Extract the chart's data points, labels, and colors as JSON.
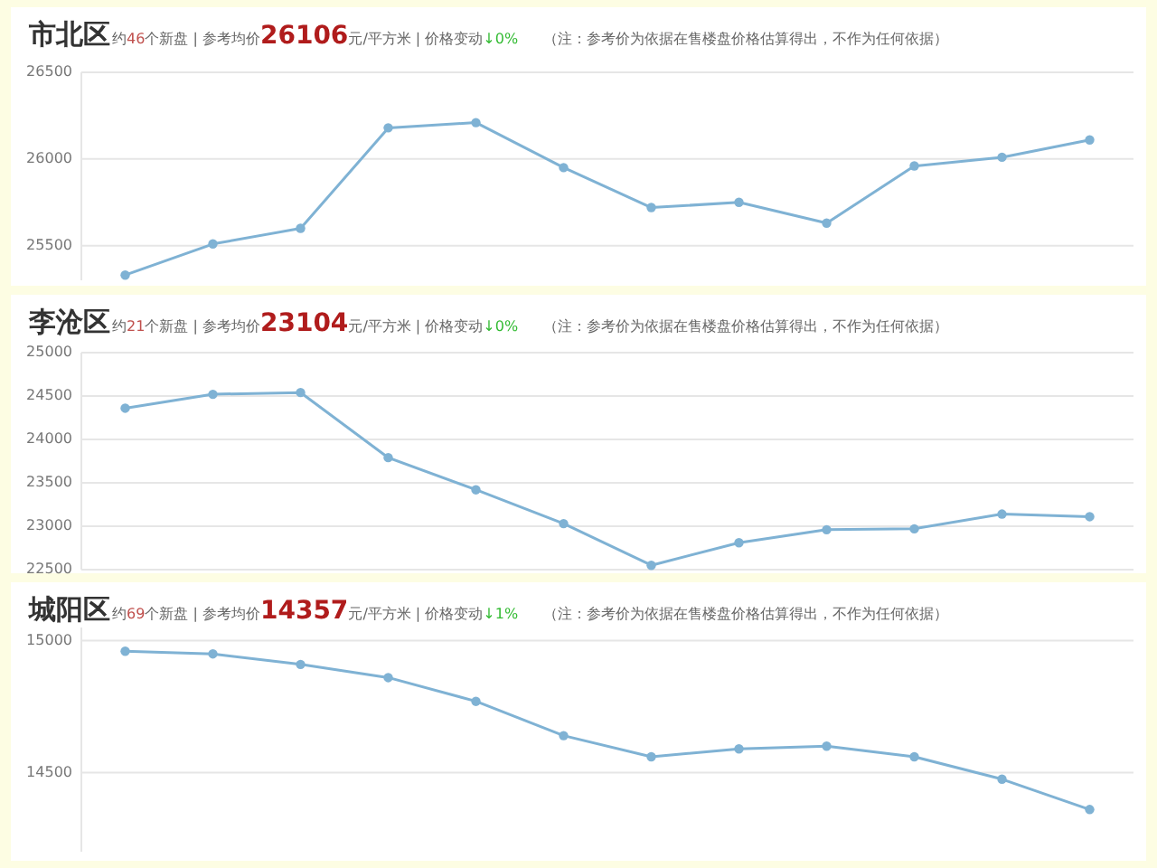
{
  "chart_data": [
    {
      "type": "line",
      "title": "市北区",
      "subtitle": "约46个新盘 | 参考均价26106元/平方米 | 价格变动↓0%",
      "annotations": [
        "（注：参考价为依据在售楼盘价格估算得出，不作为任何依据）"
      ],
      "categories": [
        null,
        null,
        null,
        null,
        null,
        null,
        null,
        null,
        null,
        null,
        null,
        null
      ],
      "series": [
        {
          "color": "#7fb2d4",
          "values": [
            25330,
            25510,
            25600,
            26180,
            26210,
            25950,
            25720,
            25750,
            25630,
            25960,
            26010,
            26110
          ]
        }
      ],
      "ylim": [
        25300,
        26500
      ],
      "yticks": [
        25500,
        26000,
        26500
      ],
      "grid": "y",
      "marker": "circle",
      "line_style": "solid"
    },
    {
      "type": "line",
      "title": "李沧区",
      "subtitle": "约21个新盘 | 参考均价23104元/平方米 | 价格变动↓0%",
      "annotations": [
        "（注：参考价为依据在售楼盘价格估算得出，不作为任何依据）"
      ],
      "categories": [
        null,
        null,
        null,
        null,
        null,
        null,
        null,
        null,
        null,
        null,
        null,
        null
      ],
      "series": [
        {
          "color": "#7fb2d4",
          "values": [
            24360,
            24520,
            24540,
            23790,
            23420,
            23030,
            22550,
            22810,
            22960,
            22970,
            23140,
            23110
          ]
        }
      ],
      "ylim": [
        22500,
        25000
      ],
      "yticks": [
        22500,
        23000,
        23500,
        24000,
        24500,
        25000
      ],
      "grid": "y",
      "marker": "circle",
      "line_style": "solid"
    },
    {
      "type": "line",
      "title": "城阳区",
      "subtitle": "约69个新盘 | 参考均价14357元/平方米 | 价格变动↓1%",
      "annotations": [
        "（注：参考价为依据在售楼盘价格估算得出，不作为任何依据）"
      ],
      "categories": [
        null,
        null,
        null,
        null,
        null,
        null,
        null,
        null,
        null,
        null,
        null,
        null
      ],
      "series": [
        {
          "color": "#7fb2d4",
          "values": [
            14960,
            14950,
            14910,
            14860,
            14770,
            14640,
            14560,
            14590,
            14600,
            14560,
            14475,
            14360
          ]
        }
      ],
      "ylim": [
        14200,
        15050
      ],
      "yticks": [
        14500,
        15000
      ],
      "grid": "y",
      "marker": "circle",
      "line_style": "solid"
    }
  ]
}
